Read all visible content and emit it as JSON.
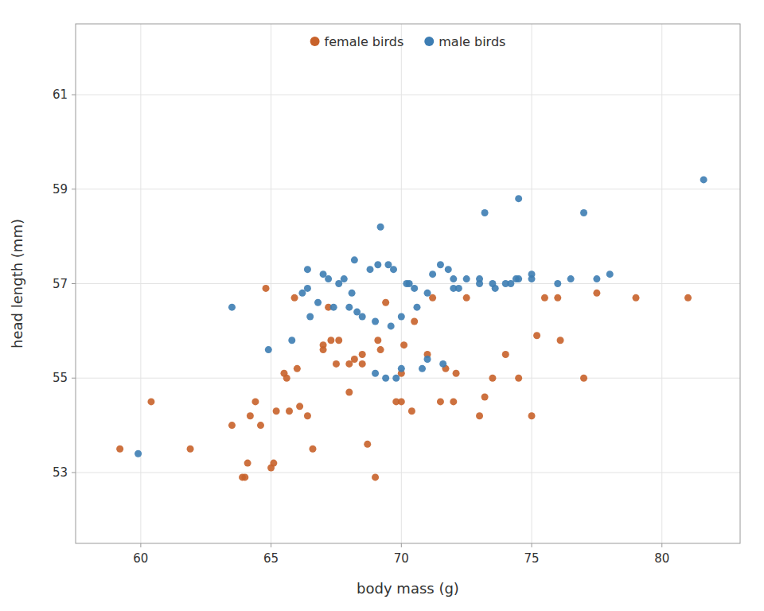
{
  "chart_data": {
    "type": "scatter",
    "x_label": "body mass (g)",
    "y_label": "head length (mm)",
    "series": [
      {
        "name": "female birds",
        "color": "#C8622A",
        "x": [
          59.2,
          60.4,
          61.9,
          63.5,
          63.9,
          64.0,
          64.1,
          64.2,
          64.4,
          64.6,
          64.8,
          65.0,
          65.1,
          65.2,
          65.5,
          65.6,
          65.7,
          65.9,
          66.0,
          66.1,
          66.4,
          66.6,
          67.0,
          67.0,
          67.2,
          67.3,
          67.5,
          67.6,
          68.0,
          68.0,
          68.2,
          68.5,
          68.5,
          68.7,
          69.0,
          69.1,
          69.2,
          69.4,
          69.8,
          70.0,
          70.0,
          70.1,
          70.4,
          70.5,
          71.0,
          71.2,
          71.5,
          71.7,
          72.0,
          72.1,
          72.5,
          73.0,
          73.2,
          73.5,
          74.0,
          74.5,
          75.0,
          75.2,
          75.5,
          76.0,
          76.1,
          77.0,
          77.5,
          79.0,
          81.0
        ],
        "values": [
          53.5,
          54.5,
          53.5,
          54.0,
          52.9,
          52.9,
          53.2,
          54.2,
          54.5,
          54.0,
          56.9,
          53.1,
          53.2,
          54.3,
          55.1,
          55.0,
          54.3,
          56.7,
          55.2,
          54.4,
          54.2,
          53.5,
          55.6,
          55.7,
          56.5,
          55.8,
          55.3,
          55.8,
          54.7,
          55.3,
          55.4,
          55.5,
          55.3,
          53.6,
          52.9,
          55.8,
          55.6,
          56.6,
          54.5,
          55.1,
          54.5,
          55.7,
          54.3,
          56.2,
          55.5,
          56.7,
          54.5,
          55.2,
          54.5,
          55.1,
          56.7,
          54.2,
          54.6,
          55.0,
          55.5,
          55.0,
          54.2,
          55.9,
          56.7,
          56.7,
          55.8,
          55.0,
          56.8,
          56.7,
          56.7
        ]
      },
      {
        "name": "male birds",
        "color": "#3D7DB3",
        "x": [
          59.9,
          63.5,
          64.9,
          65.8,
          66.2,
          66.4,
          66.4,
          66.5,
          66.8,
          67.0,
          67.2,
          67.4,
          67.6,
          67.8,
          68.0,
          68.1,
          68.2,
          68.3,
          68.5,
          68.8,
          69.0,
          69.0,
          69.1,
          69.2,
          69.4,
          69.5,
          69.6,
          69.7,
          69.8,
          70.0,
          70.0,
          70.2,
          70.3,
          70.5,
          70.6,
          70.8,
          71.0,
          71.0,
          71.2,
          71.5,
          71.6,
          71.8,
          72.0,
          72.0,
          72.2,
          72.5,
          73.0,
          73.0,
          73.2,
          73.5,
          73.6,
          74.0,
          74.2,
          74.4,
          74.5,
          74.5,
          75.0,
          75.0,
          76.0,
          76.5,
          77.0,
          77.5,
          78.0,
          81.6
        ],
        "values": [
          53.4,
          56.5,
          55.6,
          55.8,
          56.8,
          56.9,
          57.3,
          56.3,
          56.6,
          57.2,
          57.1,
          56.5,
          57.0,
          57.1,
          56.5,
          56.8,
          57.5,
          56.4,
          56.3,
          57.3,
          55.1,
          56.2,
          57.4,
          58.2,
          55.0,
          57.4,
          56.1,
          57.3,
          55.0,
          56.3,
          55.2,
          57.0,
          57.0,
          56.9,
          56.5,
          55.2,
          55.4,
          56.8,
          57.2,
          57.4,
          55.3,
          57.3,
          57.1,
          56.9,
          56.9,
          57.1,
          57.1,
          57.0,
          58.5,
          57.0,
          56.9,
          57.0,
          57.0,
          57.1,
          58.8,
          57.1,
          57.1,
          57.2,
          57.0,
          57.1,
          58.5,
          57.1,
          57.2,
          59.2
        ]
      }
    ],
    "xlim": [
      57.5,
      83
    ],
    "ylim": [
      51.5,
      62.5
    ],
    "xticks": [
      60,
      65,
      70,
      75,
      80
    ],
    "yticks": [
      53,
      55,
      57,
      59,
      61
    ],
    "grid": true,
    "legend": "top"
  }
}
